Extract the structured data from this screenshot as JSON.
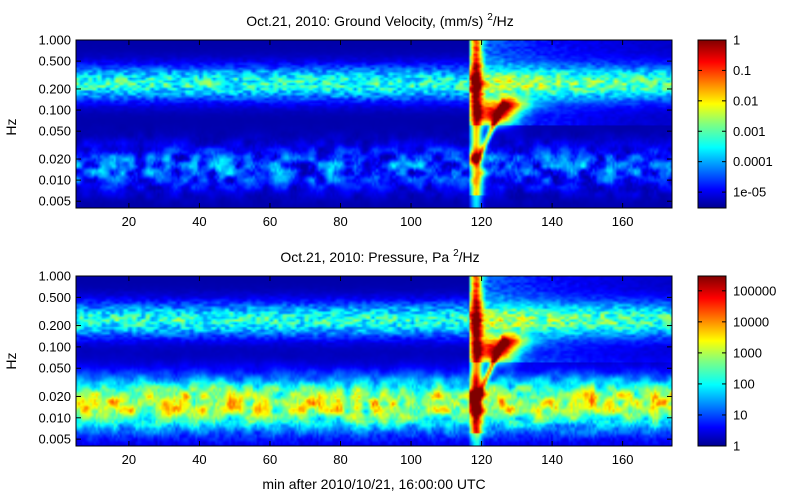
{
  "chart_data": [
    {
      "type": "heatmap",
      "title": "Oct.21, 2010: Ground Velocity, (mm/s)",
      "title_sup": "2",
      "title_tail": "/Hz",
      "ylabel": "Hz",
      "xlabel": "",
      "xlim": [
        5,
        174
      ],
      "x_ticks": [
        20,
        40,
        60,
        80,
        100,
        120,
        140,
        160
      ],
      "y_scale": "log",
      "ylim": [
        0.004,
        1.0
      ],
      "y_ticks": [
        0.005,
        0.01,
        0.02,
        0.05,
        0.1,
        0.2,
        0.5,
        1.0
      ],
      "y_tick_labels": [
        "0.005",
        "0.010",
        "0.020",
        "0.050",
        "0.100",
        "0.200",
        "0.500",
        "1.000"
      ],
      "colorbar": {
        "scale": "log",
        "colormap": "jet",
        "range": [
          3e-06,
          1
        ],
        "ticks": [
          1,
          0.1,
          0.01,
          0.001,
          0.0001,
          1e-05
        ],
        "tick_labels": [
          "1",
          "0.1",
          "0.01",
          "0.001",
          "0.0001",
          "1e-05"
        ]
      },
      "features": {
        "microseism_band_hz": [
          0.15,
          0.35
        ],
        "low_band_hz": [
          0.006,
          0.03
        ],
        "event_onset_min": 117,
        "event_peak_min": 124,
        "event_peak_hz": 0.09
      }
    },
    {
      "type": "heatmap",
      "title": "Oct.21, 2010: Pressure, Pa",
      "title_sup": "2",
      "title_tail": "/Hz",
      "ylabel": "Hz",
      "xlabel": "min after 2010/10/21, 16:00:00 UTC",
      "xlim": [
        5,
        174
      ],
      "x_ticks": [
        20,
        40,
        60,
        80,
        100,
        120,
        140,
        160
      ],
      "y_scale": "log",
      "ylim": [
        0.004,
        1.0
      ],
      "y_ticks": [
        0.005,
        0.01,
        0.02,
        0.05,
        0.1,
        0.2,
        0.5,
        1.0
      ],
      "y_tick_labels": [
        "0.005",
        "0.010",
        "0.020",
        "0.050",
        "0.100",
        "0.200",
        "0.500",
        "1.000"
      ],
      "colorbar": {
        "scale": "log",
        "colormap": "jet",
        "range": [
          1,
          300000
        ],
        "ticks": [
          100000,
          10000,
          1000,
          100,
          10,
          1
        ],
        "tick_labels": [
          "100000",
          "10000",
          "1000",
          "100",
          "10",
          "1"
        ]
      },
      "features": {
        "microseism_band_hz": [
          0.15,
          0.35
        ],
        "low_band_hz": [
          0.005,
          0.04
        ],
        "event_onset_min": 117,
        "event_peak_min": 124,
        "event_peak_hz": 0.09
      }
    }
  ]
}
